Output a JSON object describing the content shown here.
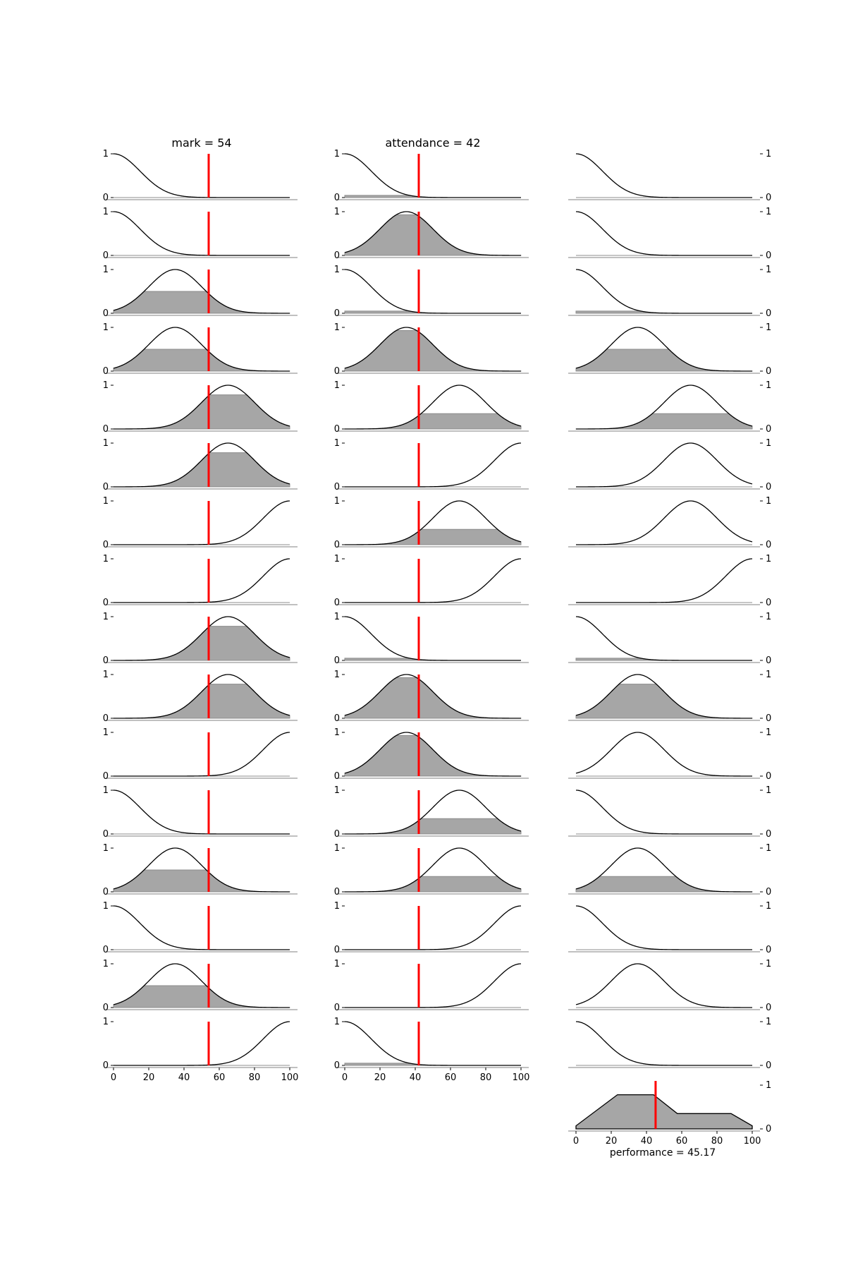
{
  "chart_data": {
    "type": "line",
    "description_of_figure": "",
    "x_range": [
      0,
      100
    ],
    "y_range": [
      0,
      1
    ],
    "x_ticks": [
      "0",
      "20",
      "40",
      "60",
      "80",
      "100"
    ],
    "y_ticks": [
      "0",
      "1"
    ],
    "columns": [
      {
        "title": "mark = 54",
        "input": 54,
        "rows": [
          {
            "shape": "low",
            "level": 0.0
          },
          {
            "shape": "low",
            "level": 0.0
          },
          {
            "shape": "mid_low",
            "level": 0.5
          },
          {
            "shape": "mid_low",
            "level": 0.5
          },
          {
            "shape": "mid_high",
            "level": 0.78
          },
          {
            "shape": "mid_high",
            "level": 0.78
          },
          {
            "shape": "high",
            "level": 0.0
          },
          {
            "shape": "high",
            "level": 0.0
          },
          {
            "shape": "mid_high",
            "level": 0.78
          },
          {
            "shape": "mid_high",
            "level": 0.78
          },
          {
            "shape": "high",
            "level": 0.0
          },
          {
            "shape": "low",
            "level": 0.0
          },
          {
            "shape": "mid_low",
            "level": 0.5
          },
          {
            "shape": "low",
            "level": 0.0
          },
          {
            "shape": "mid_low",
            "level": 0.5
          },
          {
            "shape": "high",
            "level": 0.0
          }
        ]
      },
      {
        "title": "attendance = 42",
        "input": 42,
        "rows": [
          {
            "shape": "low",
            "level": 0.05
          },
          {
            "shape": "mid_low",
            "level": 0.93
          },
          {
            "shape": "low",
            "level": 0.05
          },
          {
            "shape": "mid_low",
            "level": 0.93
          },
          {
            "shape": "mid_high",
            "level": 0.35
          },
          {
            "shape": "high",
            "level": 0.0
          },
          {
            "shape": "mid_high",
            "level": 0.35
          },
          {
            "shape": "high",
            "level": 0.0
          },
          {
            "shape": "low",
            "level": 0.05
          },
          {
            "shape": "mid_low",
            "level": 0.93
          },
          {
            "shape": "mid_low",
            "level": 0.93
          },
          {
            "shape": "mid_high",
            "level": 0.35
          },
          {
            "shape": "mid_high",
            "level": 0.35
          },
          {
            "shape": "high",
            "level": 0.0
          },
          {
            "shape": "high",
            "level": 0.0
          },
          {
            "shape": "low",
            "level": 0.05
          }
        ]
      },
      {
        "title": "",
        "rows": [
          {
            "shape": "low",
            "level": 0.0
          },
          {
            "shape": "low",
            "level": 0.0
          },
          {
            "shape": "low",
            "level": 0.05
          },
          {
            "shape": "mid_low",
            "level": 0.5
          },
          {
            "shape": "mid_high",
            "level": 0.35
          },
          {
            "shape": "mid_high",
            "level": 0.0
          },
          {
            "shape": "mid_high",
            "level": 0.0
          },
          {
            "shape": "high",
            "level": 0.0
          },
          {
            "shape": "low",
            "level": 0.05
          },
          {
            "shape": "mid_low",
            "level": 0.78
          },
          {
            "shape": "mid_low",
            "level": 0.0
          },
          {
            "shape": "low",
            "level": 0.0
          },
          {
            "shape": "mid_low",
            "level": 0.35
          },
          {
            "shape": "low",
            "level": 0.0
          },
          {
            "shape": "mid_low",
            "level": 0.0
          },
          {
            "shape": "low",
            "level": 0.0
          }
        ]
      }
    ],
    "aggregate": {
      "label": "performance = 45.17",
      "output": 45.17,
      "points": [
        [
          0,
          0.07
        ],
        [
          23.5,
          0.78
        ],
        [
          44,
          0.78
        ],
        [
          57.5,
          0.35
        ],
        [
          88,
          0.35
        ],
        [
          100,
          0.07
        ]
      ]
    },
    "colors": {
      "line": "#000000",
      "fill": "#a6a6a6",
      "fill_edge": "#8c8c8c",
      "marker": "#ff0000",
      "axis": "#808080"
    }
  }
}
